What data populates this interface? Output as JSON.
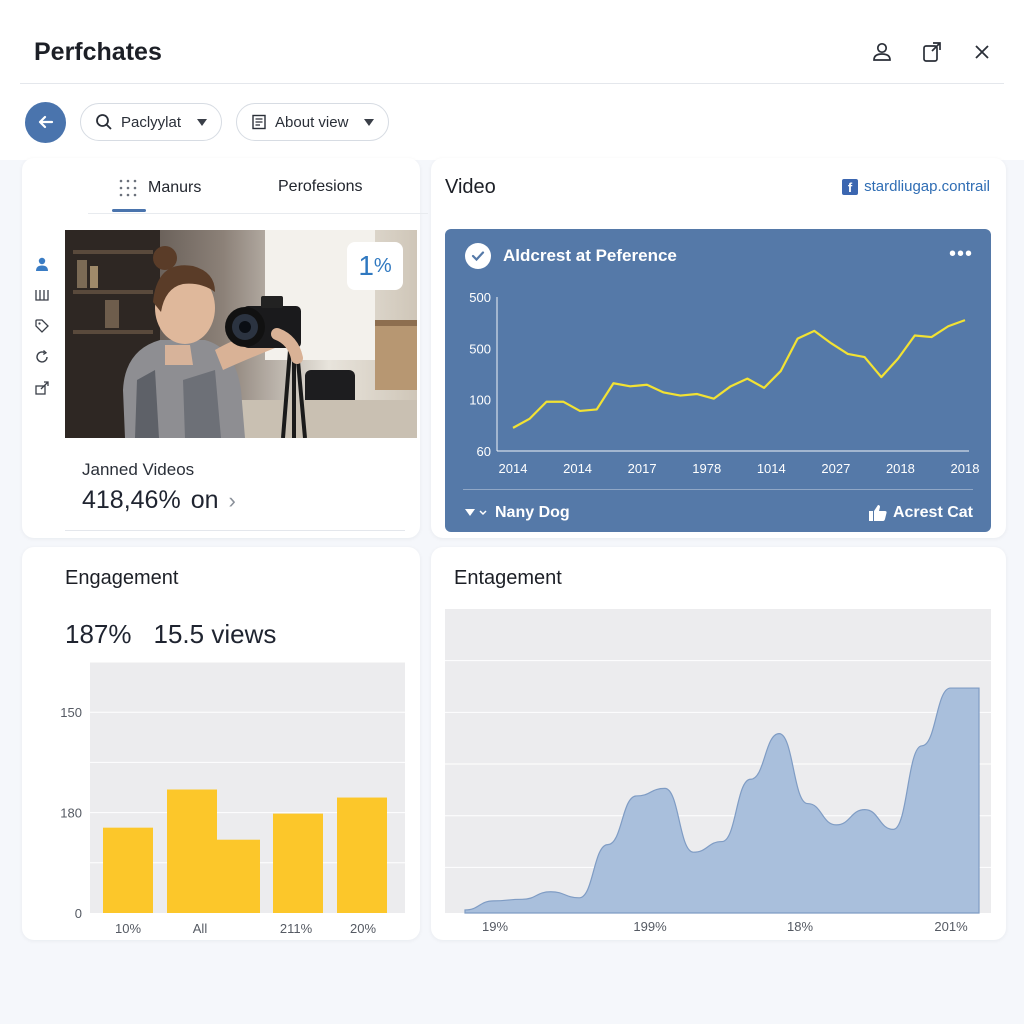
{
  "app": {
    "title": "Perfchates"
  },
  "window_icons": [
    "user-icon",
    "share-icon",
    "close-icon"
  ],
  "toolbar": {
    "search_label": "Paclyylat",
    "view_label": "About view"
  },
  "left_card": {
    "tabs": [
      {
        "label": "Manurs",
        "active": true
      },
      {
        "label": "Perofesions",
        "active": false
      }
    ],
    "side_icons": [
      "person-icon",
      "columns-icon",
      "tag-icon",
      "refresh-icon",
      "export-icon"
    ],
    "badge_value": "1",
    "badge_unit": "%",
    "stat_label": "Janned Videos",
    "stat_value": "418,46%",
    "stat_suffix": "on"
  },
  "video_card": {
    "title": "Video",
    "link_text": "stardliugap.contrail",
    "panel_title": "Aldcrest at Peference",
    "footer_left": "Nany Dog",
    "footer_right": "Acrest Cat"
  },
  "engagement_left": {
    "title": "Engagement",
    "stat_percent": "187%",
    "stat_views_number": "15.5",
    "stat_views_label": "views"
  },
  "engagement_right": {
    "title": "Entagement"
  },
  "colors": {
    "accent": "#4a74ad",
    "panel_blue": "#5579a8",
    "line_yellow": "#f2e233",
    "bar_yellow": "#fcc72a",
    "area_blue": "#a9bfdc"
  },
  "chart_data": [
    {
      "id": "line",
      "type": "line",
      "x_tick_labels": [
        "2014",
        "2014",
        "2017",
        "1978",
        "1014",
        "2027",
        "2018",
        "2018"
      ],
      "y_tick_labels": [
        "500",
        "500",
        "100",
        "60"
      ],
      "values": [
        0.15,
        0.21,
        0.32,
        0.32,
        0.26,
        0.27,
        0.44,
        0.42,
        0.43,
        0.38,
        0.36,
        0.37,
        0.34,
        0.42,
        0.47,
        0.41,
        0.52,
        0.73,
        0.78,
        0.7,
        0.63,
        0.61,
        0.48,
        0.6,
        0.75,
        0.74,
        0.81,
        0.85
      ]
    },
    {
      "id": "bars",
      "type": "bar",
      "y_tick_labels": [
        "150",
        "180",
        "0"
      ],
      "x_tick_labels": [
        "10%",
        "All",
        "",
        "211%",
        "20%"
      ],
      "values": [
        85,
        123,
        73,
        99,
        115
      ],
      "ylim": [
        0,
        250
      ]
    },
    {
      "id": "area",
      "type": "area",
      "x_tick_labels": [
        "19%",
        "199%",
        "18%",
        "201%"
      ],
      "values": [
        2,
        8,
        9,
        14,
        10,
        45,
        77,
        82,
        40,
        47,
        88,
        118,
        72,
        58,
        68,
        55,
        110,
        148,
        148
      ],
      "ylim": [
        0,
        200
      ]
    }
  ]
}
